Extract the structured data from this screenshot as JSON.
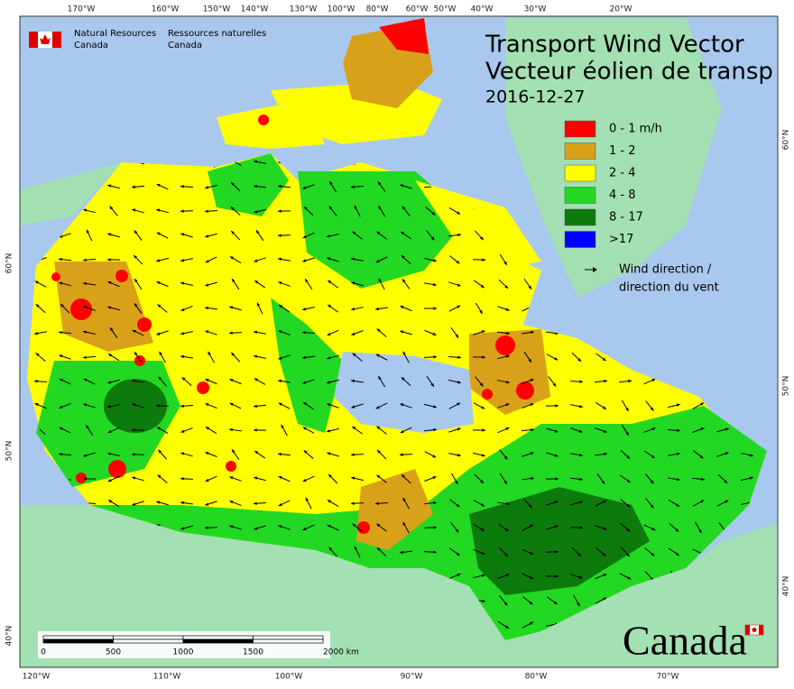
{
  "agency": {
    "en_lines": [
      "Natural Resources",
      "Canada"
    ],
    "fr_lines": [
      "Ressources naturelles",
      "Canada"
    ]
  },
  "title_lines": [
    "Transport Wind Vector",
    "Vecteur éolien de transp"
  ],
  "date": "2016-12-27",
  "legend": {
    "items": [
      {
        "label": "0 - 1 m/h",
        "color": "#ff0000"
      },
      {
        "label": "1 - 2",
        "color": "#d9a11a"
      },
      {
        "label": "2 - 4",
        "color": "#ffff00"
      },
      {
        "label": "4 - 8",
        "color": "#22d822"
      },
      {
        "label": "8 - 17",
        "color": "#0c7a0c"
      },
      {
        "label": ">17",
        "color": "#0000ff"
      }
    ],
    "arrow_label_lines": [
      "Wind direction /",
      "direction du vent"
    ]
  },
  "graticule": {
    "top": [
      "170°W",
      "160°W",
      "150°W",
      "140°W",
      "130°W",
      "100°W",
      "80°W",
      "60°W",
      "50°W",
      "40°W",
      "30°W",
      "20°W"
    ],
    "bottom": [
      "120°W",
      "110°W",
      "100°W",
      "90°W",
      "80°W",
      "70°W"
    ],
    "left": [
      "60°N",
      "50°N",
      "40°N"
    ],
    "right": [
      "60°N",
      "50°N",
      "40°N"
    ]
  },
  "scale_bar": {
    "labels": [
      "0",
      "500",
      "1000",
      "1500",
      "2000 km"
    ]
  },
  "wordmark": "Canada"
}
